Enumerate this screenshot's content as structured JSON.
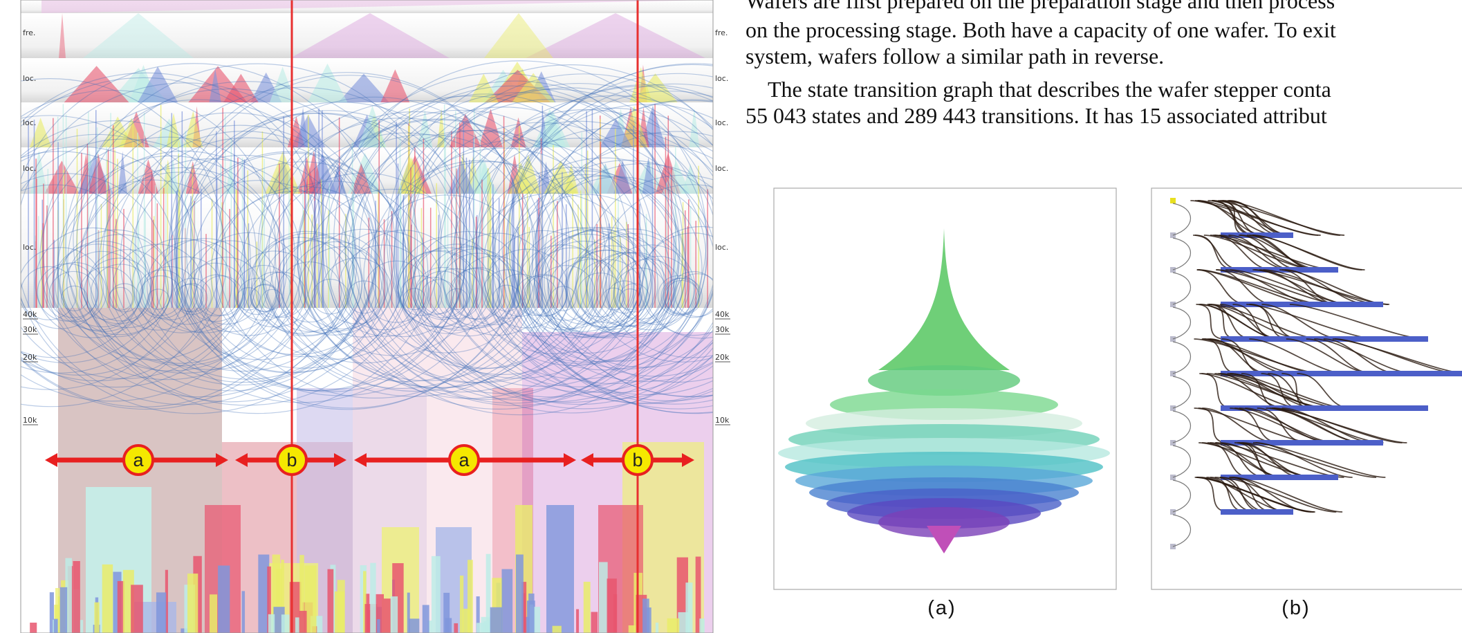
{
  "paragraph": {
    "lines": [
      "Wafers are first prepared on the preparation stage and then process",
      "on the processing stage. Both have a capacity of one wafer. To exit",
      "system, wafers follow a similar path in reverse.",
      "The state transition graph that describes the wafer stepper conta",
      "55 043 states and 289 443 transitions. It has 15 associated attribut"
    ]
  },
  "left_figure": {
    "row_labels": [
      "fre.",
      "loc.",
      "loc.",
      "loc.",
      "loc."
    ],
    "axis_labels": [
      "40k",
      "30k",
      "20k",
      "10k"
    ],
    "annotations": [
      "a",
      "b",
      "a",
      "b"
    ]
  },
  "subfigures": [
    {
      "caption": "(a)"
    },
    {
      "caption": "(b)"
    }
  ]
}
